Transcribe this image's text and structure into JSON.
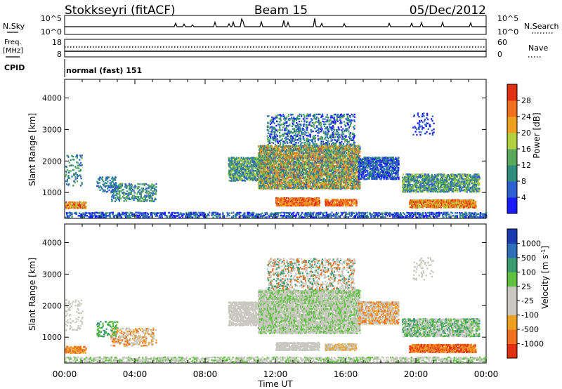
{
  "header": {
    "station": "Stokkseyri (fitACF)",
    "beam": "Beam 15",
    "date": "05/Dec/2012"
  },
  "noise_panel": {
    "left_label": "N.Sky",
    "right_label": "N.Search",
    "left_ticks": [
      "10^5",
      "10^0"
    ],
    "right_ticks": [
      "10^5",
      "10^0"
    ]
  },
  "freq_panel": {
    "left_label_line1": "Freq.",
    "left_label_line2": "[MHz]",
    "right_label": "Nave",
    "left_ticks": [
      "18",
      "8"
    ],
    "right_ticks": [
      "60",
      "0"
    ]
  },
  "cpid_panel": {
    "label": "CPID",
    "value": "normal (fast) 151"
  },
  "chart_data": [
    {
      "type": "heatmap",
      "variable": "Power",
      "ylabel": "Slant Range [km]",
      "ylim": [
        180,
        4590
      ],
      "yticks": [
        1000,
        2000,
        3000,
        4000
      ],
      "xlim_hours": [
        0,
        24
      ],
      "colorbar": {
        "label": "Power [dB]",
        "ticks": [
          "4",
          "8",
          "12",
          "16",
          "20",
          "24",
          "28"
        ],
        "colors": [
          "#1a1aff",
          "#2e5fd0",
          "#2e8c7a",
          "#5aa85a",
          "#b0d040",
          "#f0a020",
          "#f07020",
          "#e03010"
        ]
      }
    },
    {
      "type": "heatmap",
      "variable": "Velocity",
      "ylabel": "Slant Range [km]",
      "ylim": [
        180,
        4590
      ],
      "yticks": [
        1000,
        2000,
        3000,
        4000
      ],
      "xlim_hours": [
        0,
        24
      ],
      "colorbar": {
        "label": "Velocity [m s",
        "label_sup": "-1",
        "label_end": "]",
        "ticks": [
          "1000",
          "500",
          "100",
          "25",
          "-25",
          "-100",
          "-500",
          "-1000"
        ],
        "colors": [
          "#1a3bb0",
          "#2e6fb8",
          "#3a9a70",
          "#60c040",
          "#c8c8c0",
          "#c8c8c0",
          "#f0a020",
          "#f07020",
          "#e03010"
        ]
      }
    }
  ],
  "x_axis": {
    "ticks": [
      "00:00",
      "04:00",
      "08:00",
      "12:00",
      "16:00",
      "20:00",
      "00:00"
    ],
    "label": "Time UT"
  }
}
